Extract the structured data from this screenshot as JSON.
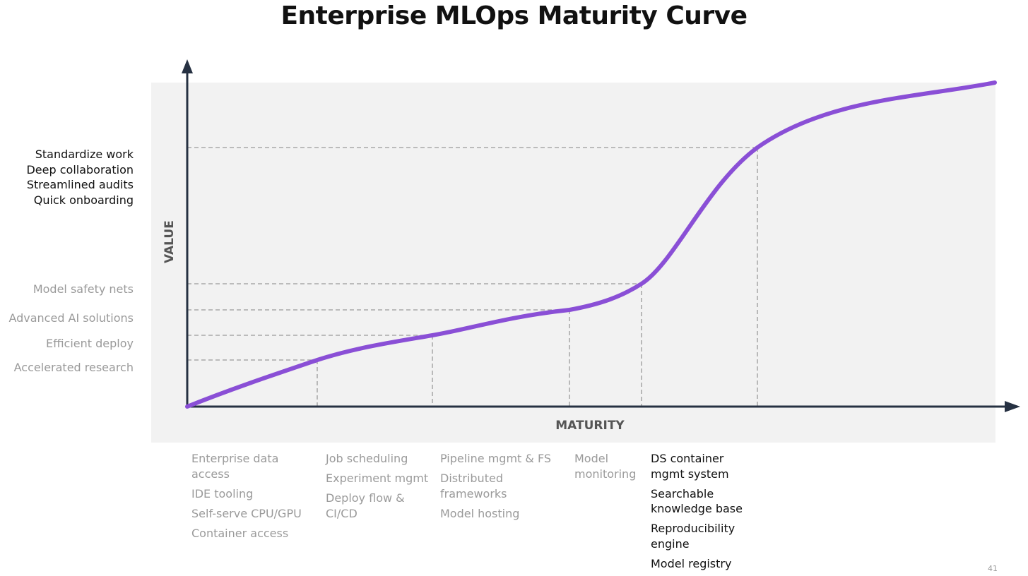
{
  "title": "Enterprise MLOps Maturity Curve",
  "axes": {
    "x_label": "MATURITY",
    "y_label": "VALUE"
  },
  "value_levels": {
    "top": [
      "Standardize work",
      "Deep collaboration",
      "Streamlined audits",
      "Quick onboarding"
    ],
    "safety_nets": "Model safety nets",
    "advanced_ai": "Advanced AI solutions",
    "efficient_deploy": "Efficient deploy",
    "accelerated_research": "Accelerated research"
  },
  "maturity_stages": [
    [
      "Enterprise data access",
      "IDE tooling",
      "Self-serve CPU/GPU",
      "Container access"
    ],
    [
      "Job scheduling",
      "Experiment mgmt",
      "Deploy flow & CI/CD"
    ],
    [
      "Pipeline mgmt & FS",
      "Distributed frameworks",
      "Model hosting"
    ],
    [
      "Model monitoring"
    ],
    [
      "DS container mgmt system",
      "Searchable knowledge base",
      "Reproducibility engine",
      "Model registry"
    ]
  ],
  "page_number": "41",
  "colors": {
    "curve": "#8a4fd6",
    "axis": "#263142",
    "guide": "#9a9a9a",
    "panel": "#f2f2f2",
    "muted_text": "#9a9a9a",
    "dark_text": "#111111"
  }
}
